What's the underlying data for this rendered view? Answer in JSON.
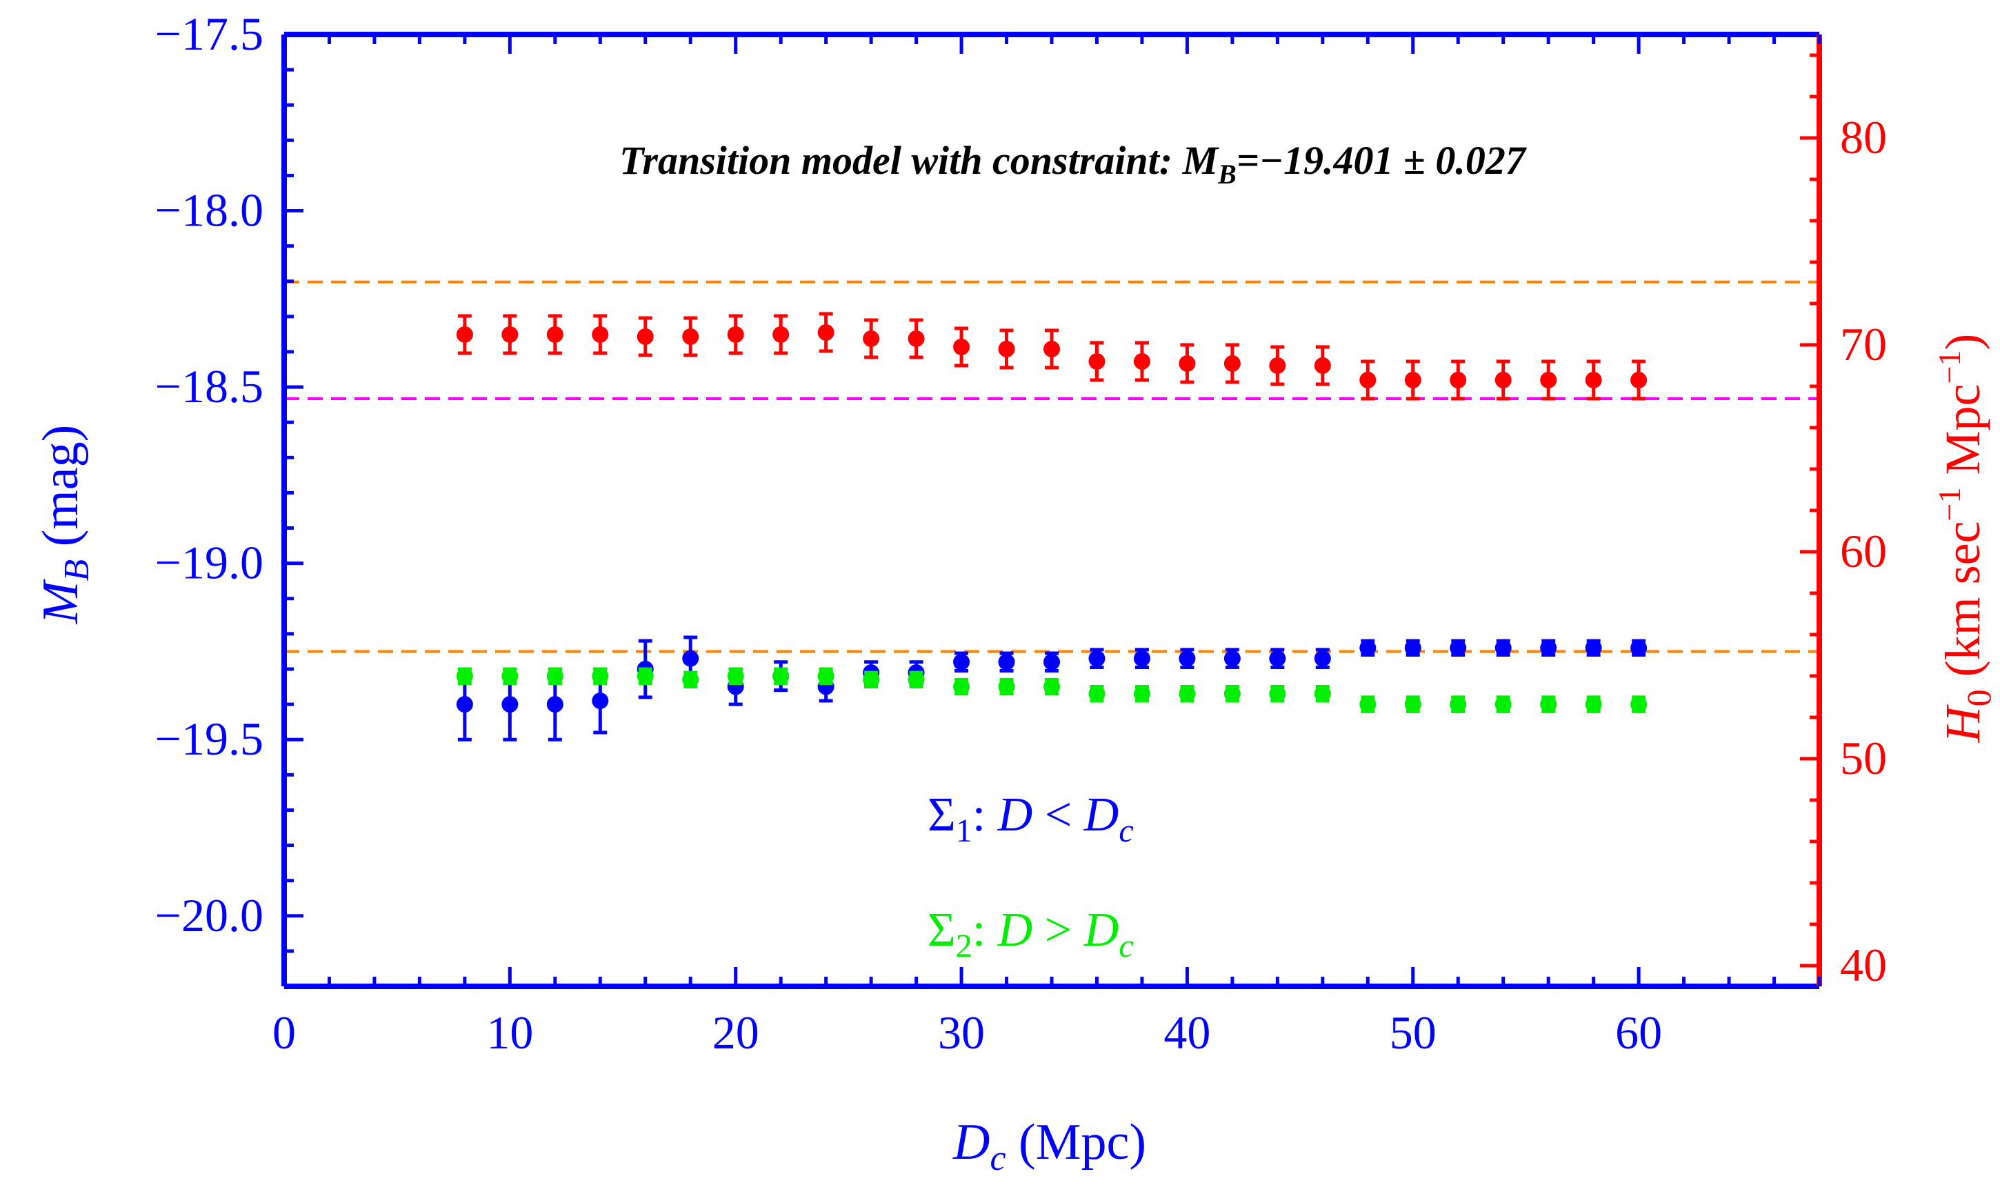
{
  "chart_data": {
    "type": "scatter",
    "title": "Transition model with constraint: M_B=−19.401 ± 0.027",
    "title_parts": {
      "prefix": "Transition model with constraint: M",
      "sub": "B",
      "suffix": "=−19.401 ± 0.027"
    },
    "xlabel": {
      "main": "D",
      "sub": "c",
      "rest": " (Mpc)"
    },
    "ylabel_left": {
      "main": "M",
      "sub": "B",
      "rest": " (mag)"
    },
    "ylabel_right": {
      "main": "H",
      "sub": "0",
      "rest1": " (km sec",
      "sup1": "−1",
      "rest2": " Mpc",
      "sup2": "−1",
      "rest3": ")"
    },
    "xlim": [
      0,
      68
    ],
    "ylim_left": [
      -20.2,
      -17.5
    ],
    "ylim_right": [
      39,
      85
    ],
    "x_ticks": [
      0,
      10,
      20,
      30,
      40,
      50,
      60
    ],
    "x_tick_labels": [
      "0",
      "10",
      "20",
      "30",
      "40",
      "50",
      "60"
    ],
    "y_left_ticks": [
      -17.5,
      -18.0,
      -18.5,
      -19.0,
      -19.5,
      -20.0
    ],
    "y_left_tick_labels": [
      "−17.5",
      "−18.0",
      "−18.5",
      "−19.0",
      "−19.5",
      "−20.0"
    ],
    "y_right_ticks": [
      40,
      50,
      60,
      70,
      80
    ],
    "y_right_tick_labels": [
      "40",
      "50",
      "60",
      "70",
      "80"
    ],
    "reference_lines": [
      {
        "name": "h0-upper-orange",
        "axis": "right",
        "value": 73.04,
        "color": "#ff8000"
      },
      {
        "name": "h0-planck-magenta",
        "axis": "right",
        "value": 67.4,
        "color": "#ff00ff"
      },
      {
        "name": "mb-orange",
        "axis": "left",
        "value": -19.25,
        "color": "#ff8000"
      }
    ],
    "series": [
      {
        "name": "H0",
        "axis": "right",
        "color": "#ff0000",
        "x": [
          8,
          10,
          12,
          14,
          16,
          18,
          20,
          22,
          24,
          26,
          28,
          30,
          32,
          34,
          36,
          38,
          40,
          42,
          44,
          46,
          48,
          50,
          52,
          54,
          56,
          58,
          60
        ],
        "y": [
          70.5,
          70.5,
          70.5,
          70.5,
          70.4,
          70.4,
          70.5,
          70.5,
          70.6,
          70.3,
          70.3,
          69.9,
          69.8,
          69.8,
          69.2,
          69.2,
          69.1,
          69.1,
          69.0,
          69.0,
          68.3,
          68.3,
          68.3,
          68.3,
          68.3,
          68.3,
          68.3
        ],
        "err": [
          0.9,
          0.9,
          0.9,
          0.9,
          0.9,
          0.9,
          0.9,
          0.9,
          0.9,
          0.9,
          0.9,
          0.9,
          0.9,
          0.9,
          0.9,
          0.9,
          0.9,
          0.9,
          0.9,
          0.9,
          0.9,
          0.9,
          0.9,
          0.9,
          0.9,
          0.9,
          0.9
        ]
      },
      {
        "name": "Σ₁: D < D_c",
        "axis": "left",
        "color": "#0000ff",
        "x": [
          8,
          10,
          12,
          14,
          16,
          18,
          20,
          22,
          24,
          26,
          28,
          30,
          32,
          34,
          36,
          38,
          40,
          42,
          44,
          46,
          48,
          50,
          52,
          54,
          56,
          58,
          60
        ],
        "y": [
          -19.4,
          -19.4,
          -19.4,
          -19.39,
          -19.3,
          -19.27,
          -19.35,
          -19.32,
          -19.35,
          -19.31,
          -19.31,
          -19.28,
          -19.28,
          -19.28,
          -19.27,
          -19.27,
          -19.27,
          -19.27,
          -19.27,
          -19.27,
          -19.24,
          -19.24,
          -19.24,
          -19.24,
          -19.24,
          -19.24,
          -19.24
        ],
        "err": [
          0.1,
          0.1,
          0.1,
          0.09,
          0.08,
          0.06,
          0.05,
          0.04,
          0.04,
          0.03,
          0.03,
          0.025,
          0.025,
          0.025,
          0.025,
          0.025,
          0.025,
          0.025,
          0.025,
          0.025,
          0.02,
          0.02,
          0.02,
          0.02,
          0.02,
          0.02,
          0.02
        ]
      },
      {
        "name": "Σ₂: D > D_c",
        "axis": "left",
        "color": "#00ee00",
        "x": [
          8,
          10,
          12,
          14,
          16,
          18,
          20,
          22,
          24,
          26,
          28,
          30,
          32,
          34,
          36,
          38,
          40,
          42,
          44,
          46,
          48,
          50,
          52,
          54,
          56,
          58,
          60
        ],
        "y": [
          -19.32,
          -19.32,
          -19.32,
          -19.32,
          -19.32,
          -19.33,
          -19.32,
          -19.32,
          -19.32,
          -19.33,
          -19.33,
          -19.35,
          -19.35,
          -19.35,
          -19.37,
          -19.37,
          -19.37,
          -19.37,
          -19.37,
          -19.37,
          -19.4,
          -19.4,
          -19.4,
          -19.4,
          -19.4,
          -19.4,
          -19.4
        ],
        "err": [
          0.02,
          0.02,
          0.02,
          0.02,
          0.02,
          0.02,
          0.02,
          0.02,
          0.02,
          0.02,
          0.02,
          0.02,
          0.02,
          0.02,
          0.02,
          0.02,
          0.02,
          0.02,
          0.02,
          0.02,
          0.02,
          0.02,
          0.02,
          0.02,
          0.02,
          0.02,
          0.02
        ]
      }
    ],
    "legend": [
      {
        "sym": "Σ",
        "sub": "1",
        "text1": ": ",
        "it1": "D",
        "rel": " < ",
        "it2": "D",
        "sub2": "c",
        "color": "#0000ff"
      },
      {
        "sym": "Σ",
        "sub": "2",
        "text1": ": ",
        "it1": "D",
        "rel": " > ",
        "it2": "D",
        "sub2": "c",
        "color": "#00ee00"
      }
    ],
    "legend_position": "bottom-center",
    "colors": {
      "left_axis": "#0000ff",
      "right_axis": "#ff0000"
    }
  }
}
